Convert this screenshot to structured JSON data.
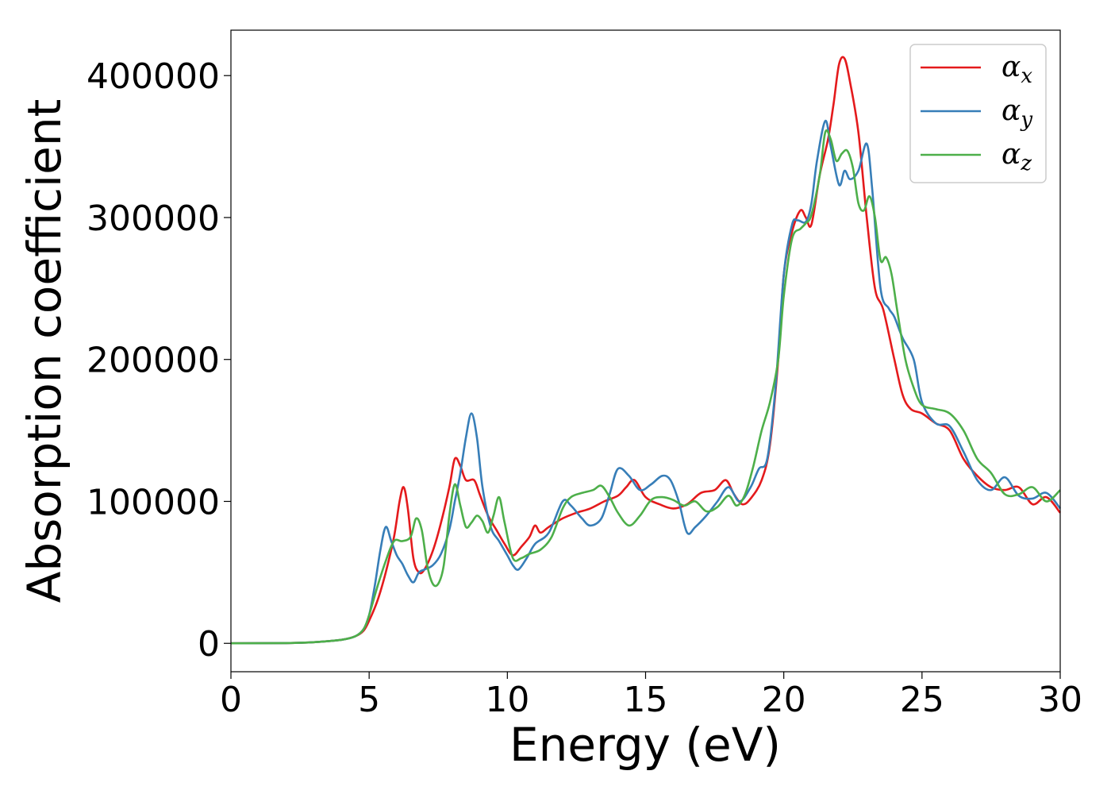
{
  "chart_data": {
    "type": "line",
    "xlabel": "Energy (eV)",
    "ylabel": "Absorption coefficient",
    "xlim": [
      0,
      30
    ],
    "ylim": [
      -20000,
      432000
    ],
    "xticks": [
      0,
      5,
      10,
      15,
      20,
      25,
      30
    ],
    "xtick_labels": [
      "0",
      "5",
      "10",
      "15",
      "20",
      "25",
      "30"
    ],
    "yticks": [
      0,
      100000,
      200000,
      300000,
      400000
    ],
    "ytick_labels": [
      "0",
      "100000",
      "200000",
      "300000",
      "400000"
    ],
    "grid": false,
    "legend_position": "top-right",
    "series": [
      {
        "name": "α",
        "subscript": "x",
        "color": "#e41a1c",
        "x": [
          0,
          2,
          3,
          4,
          4.5,
          4.8,
          5.0,
          5.3,
          5.6,
          5.9,
          6.1,
          6.25,
          6.4,
          6.6,
          6.8,
          7.0,
          7.3,
          7.6,
          7.9,
          8.1,
          8.3,
          8.5,
          8.8,
          9.0,
          9.3,
          9.6,
          9.9,
          10.2,
          10.5,
          10.8,
          11.0,
          11.2,
          11.5,
          12.0,
          12.5,
          13.0,
          13.5,
          14.0,
          14.3,
          14.6,
          15.0,
          15.5,
          16.0,
          16.5,
          17.0,
          17.5,
          17.9,
          18.2,
          18.5,
          18.8,
          19.2,
          19.5,
          19.8,
          20.0,
          20.3,
          20.6,
          20.8,
          21.0,
          21.3,
          21.6,
          21.8,
          22.0,
          22.2,
          22.4,
          22.7,
          23.0,
          23.3,
          23.6,
          24.0,
          24.3,
          24.6,
          25.0,
          25.5,
          26.0,
          26.5,
          27.0,
          27.5,
          28.0,
          28.5,
          29.0,
          29.5,
          30.0
        ],
        "y": [
          0,
          200,
          800,
          2500,
          5000,
          9000,
          16000,
          30000,
          50000,
          75000,
          100000,
          110000,
          95000,
          60000,
          50000,
          52000,
          65000,
          85000,
          110000,
          130000,
          125000,
          115000,
          115000,
          105000,
          90000,
          80000,
          70000,
          62000,
          68000,
          75000,
          83000,
          78000,
          82000,
          88000,
          92000,
          95000,
          100000,
          104000,
          110000,
          115000,
          103000,
          98000,
          95000,
          98000,
          106000,
          108000,
          115000,
          105000,
          98000,
          102000,
          115000,
          140000,
          200000,
          260000,
          290000,
          305000,
          300000,
          295000,
          330000,
          355000,
          380000,
          408000,
          412000,
          395000,
          360000,
          300000,
          250000,
          235000,
          200000,
          175000,
          165000,
          162000,
          155000,
          150000,
          130000,
          118000,
          110000,
          108000,
          110000,
          98000,
          103000,
          92000
        ]
      },
      {
        "name": "α",
        "subscript": "y",
        "color": "#377eb8",
        "x": [
          0,
          2,
          3,
          4,
          4.5,
          4.8,
          5.0,
          5.2,
          5.4,
          5.6,
          5.8,
          6.0,
          6.2,
          6.4,
          6.6,
          6.8,
          7.0,
          7.3,
          7.6,
          7.9,
          8.1,
          8.3,
          8.5,
          8.7,
          8.9,
          9.1,
          9.4,
          9.7,
          10.0,
          10.2,
          10.4,
          10.7,
          11.0,
          11.5,
          12.0,
          12.3,
          12.7,
          13.0,
          13.4,
          13.7,
          14.0,
          14.4,
          14.8,
          15.2,
          15.6,
          15.9,
          16.2,
          16.5,
          16.8,
          17.2,
          17.6,
          18.0,
          18.4,
          18.8,
          19.1,
          19.4,
          19.7,
          20.0,
          20.3,
          20.5,
          20.8,
          21.0,
          21.2,
          21.5,
          21.7,
          22.0,
          22.2,
          22.4,
          22.7,
          23.0,
          23.2,
          23.5,
          23.8,
          24.0,
          24.3,
          24.7,
          25.0,
          25.5,
          26.0,
          26.5,
          27.0,
          27.5,
          28.0,
          28.5,
          29.0,
          29.5,
          30.0
        ],
        "y": [
          0,
          200,
          800,
          2500,
          5000,
          10000,
          20000,
          40000,
          65000,
          82000,
          72000,
          62000,
          56000,
          48000,
          43000,
          50000,
          52000,
          55000,
          63000,
          80000,
          100000,
          120000,
          145000,
          162000,
          145000,
          110000,
          82000,
          72000,
          62000,
          55000,
          52000,
          60000,
          70000,
          78000,
          100000,
          97000,
          88000,
          83000,
          88000,
          105000,
          123000,
          118000,
          108000,
          112000,
          118000,
          115000,
          100000,
          78000,
          82000,
          90000,
          100000,
          110000,
          100000,
          110000,
          123000,
          130000,
          180000,
          260000,
          295000,
          298000,
          297000,
          310000,
          340000,
          368000,
          350000,
          323000,
          333000,
          327000,
          333000,
          352000,
          320000,
          250000,
          236000,
          230000,
          215000,
          200000,
          170000,
          155000,
          153000,
          135000,
          115000,
          108000,
          117000,
          104000,
          102000,
          106000,
          95000
        ]
      },
      {
        "name": "α",
        "subscript": "z",
        "color": "#4daf4a",
        "x": [
          0,
          2,
          3,
          4,
          4.5,
          4.8,
          5.0,
          5.3,
          5.6,
          5.9,
          6.2,
          6.5,
          6.7,
          6.9,
          7.1,
          7.3,
          7.5,
          7.7,
          7.9,
          8.1,
          8.3,
          8.5,
          8.7,
          8.9,
          9.1,
          9.3,
          9.5,
          9.7,
          9.9,
          10.2,
          10.5,
          10.8,
          11.2,
          11.6,
          12.0,
          12.3,
          12.7,
          13.1,
          13.4,
          13.7,
          14.0,
          14.4,
          14.8,
          15.2,
          15.6,
          16.0,
          16.4,
          16.8,
          17.2,
          17.6,
          18.0,
          18.3,
          18.6,
          18.9,
          19.2,
          19.5,
          19.8,
          20.0,
          20.3,
          20.6,
          20.8,
          21.0,
          21.3,
          21.5,
          21.7,
          21.9,
          22.1,
          22.3,
          22.5,
          22.7,
          22.9,
          23.1,
          23.3,
          23.5,
          23.7,
          23.9,
          24.1,
          24.4,
          24.7,
          25.0,
          25.5,
          26.0,
          26.5,
          27.0,
          27.5,
          28.0,
          28.5,
          29.0,
          29.5,
          30.0
        ],
        "y": [
          0,
          200,
          800,
          2500,
          5000,
          10000,
          20000,
          40000,
          58000,
          72000,
          72000,
          75000,
          88000,
          80000,
          55000,
          42000,
          42000,
          55000,
          90000,
          112000,
          97000,
          82000,
          85000,
          90000,
          86000,
          78000,
          90000,
          103000,
          85000,
          60000,
          60000,
          63000,
          66000,
          75000,
          95000,
          103000,
          106000,
          108000,
          111000,
          103000,
          92000,
          83000,
          90000,
          101000,
          103000,
          101000,
          97000,
          100000,
          93000,
          96000,
          104000,
          97000,
          105000,
          125000,
          150000,
          170000,
          200000,
          245000,
          285000,
          292000,
          296000,
          302000,
          330000,
          360000,
          355000,
          340000,
          345000,
          347000,
          335000,
          310000,
          305000,
          315000,
          300000,
          270000,
          272000,
          260000,
          235000,
          200000,
          180000,
          168000,
          165000,
          162000,
          150000,
          130000,
          120000,
          105000,
          105000,
          110000,
          100000,
          108000
        ]
      }
    ]
  }
}
